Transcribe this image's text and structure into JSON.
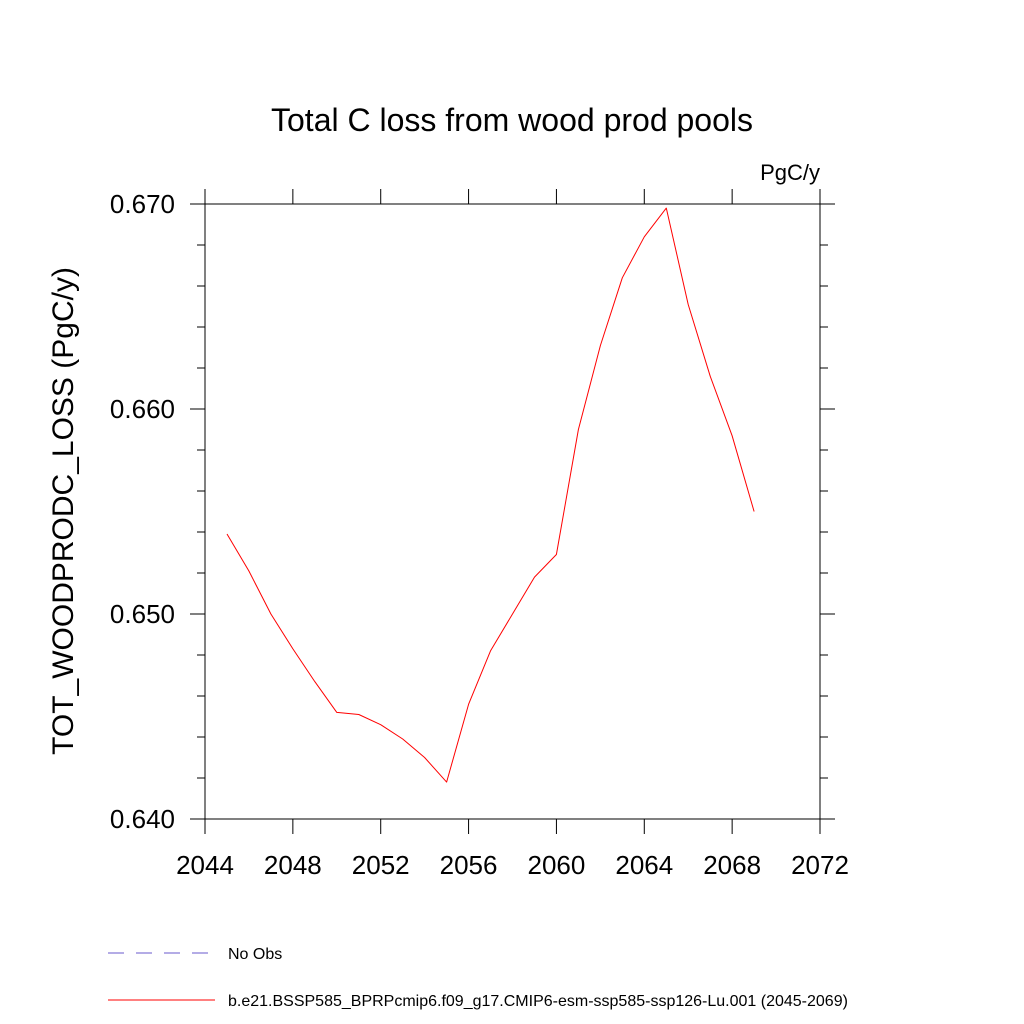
{
  "chart_data": {
    "type": "line",
    "title": "Total C loss from wood prod pools",
    "units": "PgC/y",
    "ylabel": "TOT_WOODPRODC_LOSS  (PgC/y)",
    "xlabel": "",
    "xlim": [
      2044,
      2072
    ],
    "ylim": [
      0.64,
      0.67
    ],
    "x_ticks": [
      2044,
      2048,
      2052,
      2056,
      2060,
      2064,
      2068,
      2072
    ],
    "x_tick_labels": [
      "2044",
      "2048",
      "2052",
      "2056",
      "2060",
      "2064",
      "2068",
      "2072"
    ],
    "y_ticks": [
      0.64,
      0.65,
      0.66,
      0.67
    ],
    "y_tick_labels": [
      "0.640",
      "0.650",
      "0.660",
      "0.670"
    ],
    "grid": false,
    "legend_position": "bottom-left",
    "series": [
      {
        "name": "b.e21.BSSP585_BPRPcmip6.f09_g17.CMIP6-esm-ssp585-ssp126-Lu.001 (2045-2069)",
        "color": "#ff0000",
        "style": "solid",
        "x": [
          2045,
          2046,
          2047,
          2048,
          2049,
          2050,
          2051,
          2052,
          2053,
          2054,
          2055,
          2056,
          2057,
          2058,
          2059,
          2060,
          2061,
          2062,
          2063,
          2064,
          2065,
          2066,
          2067,
          2068,
          2069
        ],
        "y": [
          0.6539,
          0.6521,
          0.65,
          0.6483,
          0.6467,
          0.6452,
          0.6451,
          0.6446,
          0.6439,
          0.643,
          0.6418,
          0.6456,
          0.6482,
          0.65,
          0.6518,
          0.6529,
          0.659,
          0.6631,
          0.6664,
          0.6684,
          0.6698,
          0.6651,
          0.6616,
          0.6587,
          0.655
        ]
      }
    ],
    "legend": [
      {
        "label": "No Obs",
        "color": "#6a5acd",
        "style": "dashed"
      },
      {
        "label": "b.e21.BSSP585_BPRPcmip6.f09_g17.CMIP6-esm-ssp585-ssp126-Lu.001 (2045-2069)",
        "color": "#ff0000",
        "style": "solid"
      }
    ]
  }
}
